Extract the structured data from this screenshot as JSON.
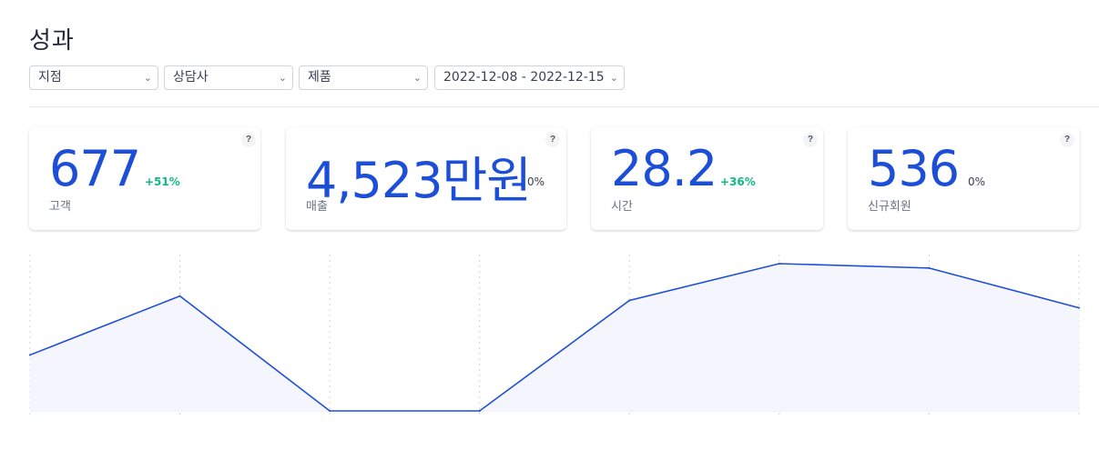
{
  "page": {
    "title": "성과"
  },
  "filters": [
    {
      "label": "지점"
    },
    {
      "label": "상담사"
    },
    {
      "label": "제품"
    },
    {
      "label": "2022-12-08 - 2022-12-15"
    }
  ],
  "stats": [
    {
      "value": "677",
      "change": "+51%",
      "trend": "up",
      "label": "고객",
      "help": "?"
    },
    {
      "value": "4,523만원",
      "change": "0%",
      "trend": "flat",
      "label": "매출",
      "help": "?"
    },
    {
      "value": "28.2",
      "change": "+36%",
      "trend": "up",
      "label": "시간",
      "help": "?"
    },
    {
      "value": "536",
      "change": "0%",
      "trend": "flat",
      "label": "신규회원",
      "help": "?"
    }
  ],
  "colors": {
    "accent": "#1d4ed8",
    "positive": "#10b981",
    "area_fill": "#f5f5fd"
  },
  "chart_data": {
    "type": "area",
    "points": 8,
    "values": [
      38,
      78,
      0,
      0,
      75,
      100,
      97,
      70
    ],
    "ylim": [
      0,
      100
    ],
    "grid": "vertical dotted",
    "xlabel": "",
    "ylabel": ""
  }
}
